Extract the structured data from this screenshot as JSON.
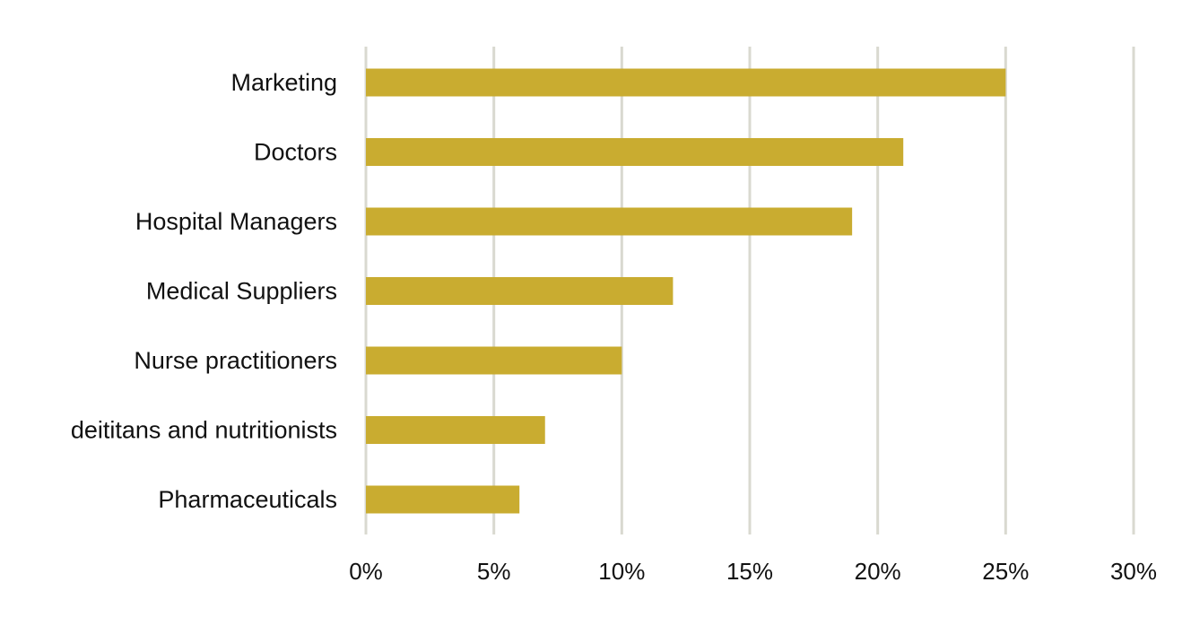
{
  "chart_data": {
    "type": "bar",
    "orientation": "horizontal",
    "title": "",
    "xlabel": "",
    "ylabel": "",
    "categories": [
      "Marketing",
      "Doctors",
      "Hospital Managers",
      "Medical Suppliers",
      "Nurse practitioners",
      "deititans and nutritionists",
      "Pharmaceuticals"
    ],
    "values": [
      25,
      21,
      19,
      12,
      10,
      7,
      6
    ],
    "xlim": [
      0,
      30
    ],
    "x_ticks": [
      0,
      5,
      10,
      15,
      20,
      25,
      30
    ],
    "x_tick_labels": [
      "0%",
      "5%",
      "10%",
      "15%",
      "20%",
      "25%",
      "30%"
    ],
    "grid": "vertical",
    "legend": "none",
    "colors": {
      "bar": "#C9AC30",
      "grid": "#D9D9D0",
      "text": "#111111"
    }
  }
}
